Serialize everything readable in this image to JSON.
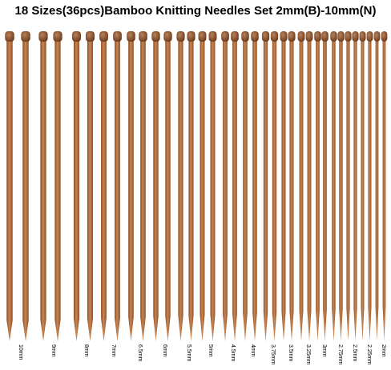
{
  "title": "18 Sizes(36pcs)Bamboo Knitting Needles Set 2mm(B)-10mm(N)",
  "labels": [
    "10mm",
    "9mm",
    "8mm",
    "7mm",
    "6.5mm",
    "6mm",
    "5.5mm",
    "5mm",
    "4.5mm",
    "4mm",
    "3.75mm",
    "3.5mm",
    "3.25mm",
    "3mm",
    "2.75mm",
    "2.5mm",
    "2.25mm",
    "2mm"
  ]
}
